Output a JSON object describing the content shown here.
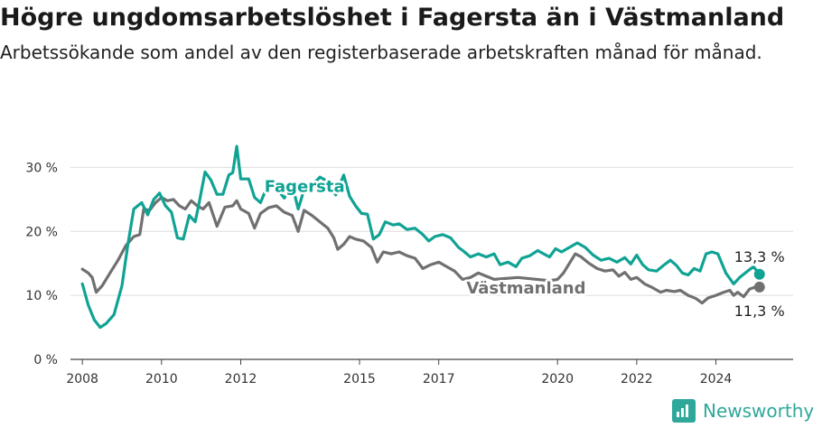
{
  "title": "Högre ungdomsarbetslöshet i Fagersta än i Västmanland",
  "subtitle": "Arbetssökande som andel av den registerbaserade arbetskraften månad för månad.",
  "logo_text": "Newsworthy",
  "colors": {
    "fagersta": "#10a394",
    "vastmanland": "#707070",
    "grid": "#dddddd"
  },
  "chart_data": {
    "type": "line",
    "title": "Högre ungdomsarbetslöshet i Fagersta än i Västmanland",
    "ylim": [
      0,
      35
    ],
    "xlim": [
      2007.7,
      2025.95
    ],
    "y_ticks": [
      0,
      10,
      20,
      30
    ],
    "y_tick_labels": [
      "0 %",
      "10 %",
      "20 %",
      "30 %"
    ],
    "x_ticks": [
      2008,
      2010,
      2012,
      2015,
      2017,
      2020,
      2022,
      2024
    ],
    "x_tick_labels": [
      "2008",
      "2010",
      "2012",
      "2015",
      "2017",
      "2020",
      "2022",
      "2024"
    ],
    "grid": true,
    "series": [
      {
        "name": "Fagersta",
        "label": "Fagersta",
        "end_label": "13,3 %",
        "end_value": 13.3,
        "points": [
          [
            2008.0,
            11.8
          ],
          [
            2008.15,
            8.5
          ],
          [
            2008.3,
            6.2
          ],
          [
            2008.45,
            5.0
          ],
          [
            2008.6,
            5.6
          ],
          [
            2008.8,
            7.0
          ],
          [
            2009.0,
            11.5
          ],
          [
            2009.15,
            18.0
          ],
          [
            2009.3,
            23.5
          ],
          [
            2009.5,
            24.5
          ],
          [
            2009.65,
            22.6
          ],
          [
            2009.8,
            25.0
          ],
          [
            2009.95,
            26.0
          ],
          [
            2010.1,
            24.0
          ],
          [
            2010.25,
            23.0
          ],
          [
            2010.4,
            19.0
          ],
          [
            2010.55,
            18.8
          ],
          [
            2010.7,
            22.5
          ],
          [
            2010.85,
            21.5
          ],
          [
            2010.95,
            24.5
          ],
          [
            2011.1,
            29.3
          ],
          [
            2011.25,
            28.0
          ],
          [
            2011.4,
            25.8
          ],
          [
            2011.55,
            25.8
          ],
          [
            2011.7,
            28.8
          ],
          [
            2011.8,
            29.2
          ],
          [
            2011.9,
            33.3
          ],
          [
            2012.0,
            28.2
          ],
          [
            2012.2,
            28.2
          ],
          [
            2012.35,
            25.3
          ],
          [
            2012.5,
            24.5
          ],
          [
            2012.6,
            26.0
          ],
          [
            2012.8,
            27.5
          ],
          [
            2013.1,
            25.2
          ],
          [
            2013.25,
            26.6
          ],
          [
            2013.35,
            26.0
          ],
          [
            2013.45,
            23.5
          ],
          [
            2013.6,
            26.5
          ],
          [
            2013.85,
            27.5
          ],
          [
            2014.0,
            28.5
          ],
          [
            2014.2,
            27.8
          ],
          [
            2014.4,
            25.7
          ],
          [
            2014.6,
            28.8
          ],
          [
            2014.75,
            25.5
          ],
          [
            2014.9,
            24.0
          ],
          [
            2015.05,
            22.8
          ],
          [
            2015.2,
            22.7
          ],
          [
            2015.35,
            18.8
          ],
          [
            2015.5,
            19.5
          ],
          [
            2015.65,
            21.5
          ],
          [
            2015.85,
            21.0
          ],
          [
            2016.0,
            21.2
          ],
          [
            2016.2,
            20.3
          ],
          [
            2016.4,
            20.5
          ],
          [
            2016.6,
            19.5
          ],
          [
            2016.75,
            18.5
          ],
          [
            2016.9,
            19.2
          ],
          [
            2017.1,
            19.5
          ],
          [
            2017.3,
            19.0
          ],
          [
            2017.5,
            17.5
          ],
          [
            2017.65,
            16.8
          ],
          [
            2017.8,
            16.0
          ],
          [
            2018.0,
            16.5
          ],
          [
            2018.2,
            16.0
          ],
          [
            2018.4,
            16.5
          ],
          [
            2018.55,
            14.8
          ],
          [
            2018.75,
            15.2
          ],
          [
            2018.95,
            14.5
          ],
          [
            2019.1,
            15.8
          ],
          [
            2019.3,
            16.2
          ],
          [
            2019.5,
            17.0
          ],
          [
            2019.65,
            16.5
          ],
          [
            2019.8,
            16.0
          ],
          [
            2019.95,
            17.3
          ],
          [
            2020.1,
            16.8
          ],
          [
            2020.3,
            17.5
          ],
          [
            2020.5,
            18.2
          ],
          [
            2020.7,
            17.5
          ],
          [
            2020.9,
            16.3
          ],
          [
            2021.1,
            15.5
          ],
          [
            2021.3,
            15.8
          ],
          [
            2021.5,
            15.2
          ],
          [
            2021.7,
            15.9
          ],
          [
            2021.85,
            14.9
          ],
          [
            2022.0,
            16.3
          ],
          [
            2022.15,
            14.8
          ],
          [
            2022.3,
            14.0
          ],
          [
            2022.5,
            13.8
          ],
          [
            2022.7,
            14.8
          ],
          [
            2022.85,
            15.5
          ],
          [
            2023.0,
            14.7
          ],
          [
            2023.15,
            13.5
          ],
          [
            2023.3,
            13.2
          ],
          [
            2023.45,
            14.2
          ],
          [
            2023.6,
            13.8
          ],
          [
            2023.75,
            16.5
          ],
          [
            2023.9,
            16.8
          ],
          [
            2024.05,
            16.5
          ],
          [
            2024.25,
            13.5
          ],
          [
            2024.45,
            11.8
          ],
          [
            2024.6,
            12.8
          ],
          [
            2024.8,
            13.8
          ],
          [
            2024.95,
            14.5
          ],
          [
            2025.1,
            13.3
          ]
        ]
      },
      {
        "name": "Västmanland",
        "label": "Västmanland",
        "end_label": "11,3 %",
        "end_value": 11.3,
        "points": [
          [
            2008.0,
            14.1
          ],
          [
            2008.15,
            13.5
          ],
          [
            2008.25,
            12.8
          ],
          [
            2008.35,
            10.5
          ],
          [
            2008.5,
            11.5
          ],
          [
            2008.7,
            13.5
          ],
          [
            2008.9,
            15.5
          ],
          [
            2009.1,
            17.8
          ],
          [
            2009.3,
            19.2
          ],
          [
            2009.45,
            19.5
          ],
          [
            2009.55,
            23.5
          ],
          [
            2009.7,
            23.3
          ],
          [
            2009.85,
            24.5
          ],
          [
            2010.0,
            25.3
          ],
          [
            2010.15,
            24.8
          ],
          [
            2010.3,
            25.0
          ],
          [
            2010.45,
            24.0
          ],
          [
            2010.6,
            23.5
          ],
          [
            2010.75,
            24.8
          ],
          [
            2010.9,
            24.0
          ],
          [
            2011.05,
            23.5
          ],
          [
            2011.2,
            24.5
          ],
          [
            2011.4,
            20.8
          ],
          [
            2011.6,
            23.8
          ],
          [
            2011.8,
            24.0
          ],
          [
            2011.9,
            24.8
          ],
          [
            2012.0,
            23.5
          ],
          [
            2012.2,
            22.8
          ],
          [
            2012.35,
            20.5
          ],
          [
            2012.5,
            22.8
          ],
          [
            2012.7,
            23.7
          ],
          [
            2012.9,
            24.0
          ],
          [
            2013.1,
            23.0
          ],
          [
            2013.3,
            22.5
          ],
          [
            2013.45,
            20.0
          ],
          [
            2013.6,
            23.3
          ],
          [
            2013.8,
            22.5
          ],
          [
            2014.0,
            21.5
          ],
          [
            2014.2,
            20.5
          ],
          [
            2014.35,
            19.0
          ],
          [
            2014.45,
            17.2
          ],
          [
            2014.6,
            18.0
          ],
          [
            2014.75,
            19.2
          ],
          [
            2014.9,
            18.8
          ],
          [
            2015.1,
            18.5
          ],
          [
            2015.3,
            17.5
          ],
          [
            2015.45,
            15.2
          ],
          [
            2015.6,
            16.8
          ],
          [
            2015.8,
            16.5
          ],
          [
            2016.0,
            16.8
          ],
          [
            2016.2,
            16.2
          ],
          [
            2016.4,
            15.8
          ],
          [
            2016.6,
            14.2
          ],
          [
            2016.8,
            14.8
          ],
          [
            2017.0,
            15.2
          ],
          [
            2017.2,
            14.5
          ],
          [
            2017.4,
            13.8
          ],
          [
            2017.6,
            12.5
          ],
          [
            2017.8,
            12.8
          ],
          [
            2018.0,
            13.5
          ],
          [
            2018.2,
            13.0
          ],
          [
            2018.4,
            12.5
          ],
          [
            2019.0,
            12.8
          ],
          [
            2019.8,
            12.3
          ],
          [
            2020.0,
            12.5
          ],
          [
            2020.15,
            13.5
          ],
          [
            2020.3,
            15.0
          ],
          [
            2020.45,
            16.5
          ],
          [
            2020.6,
            16.0
          ],
          [
            2020.8,
            15.0
          ],
          [
            2021.0,
            14.2
          ],
          [
            2021.2,
            13.8
          ],
          [
            2021.4,
            14.0
          ],
          [
            2021.55,
            13.0
          ],
          [
            2021.7,
            13.6
          ],
          [
            2021.85,
            12.5
          ],
          [
            2022.0,
            12.8
          ],
          [
            2022.2,
            11.8
          ],
          [
            2022.4,
            11.2
          ],
          [
            2022.6,
            10.5
          ],
          [
            2022.75,
            10.8
          ],
          [
            2022.95,
            10.6
          ],
          [
            2023.1,
            10.8
          ],
          [
            2023.3,
            10.0
          ],
          [
            2023.5,
            9.5
          ],
          [
            2023.65,
            8.8
          ],
          [
            2023.8,
            9.6
          ],
          [
            2024.0,
            10.0
          ],
          [
            2024.2,
            10.5
          ],
          [
            2024.35,
            10.8
          ],
          [
            2024.45,
            10.0
          ],
          [
            2024.55,
            10.5
          ],
          [
            2024.7,
            9.8
          ],
          [
            2024.85,
            11.0
          ],
          [
            2025.0,
            11.3
          ],
          [
            2025.1,
            11.3
          ]
        ]
      }
    ]
  }
}
